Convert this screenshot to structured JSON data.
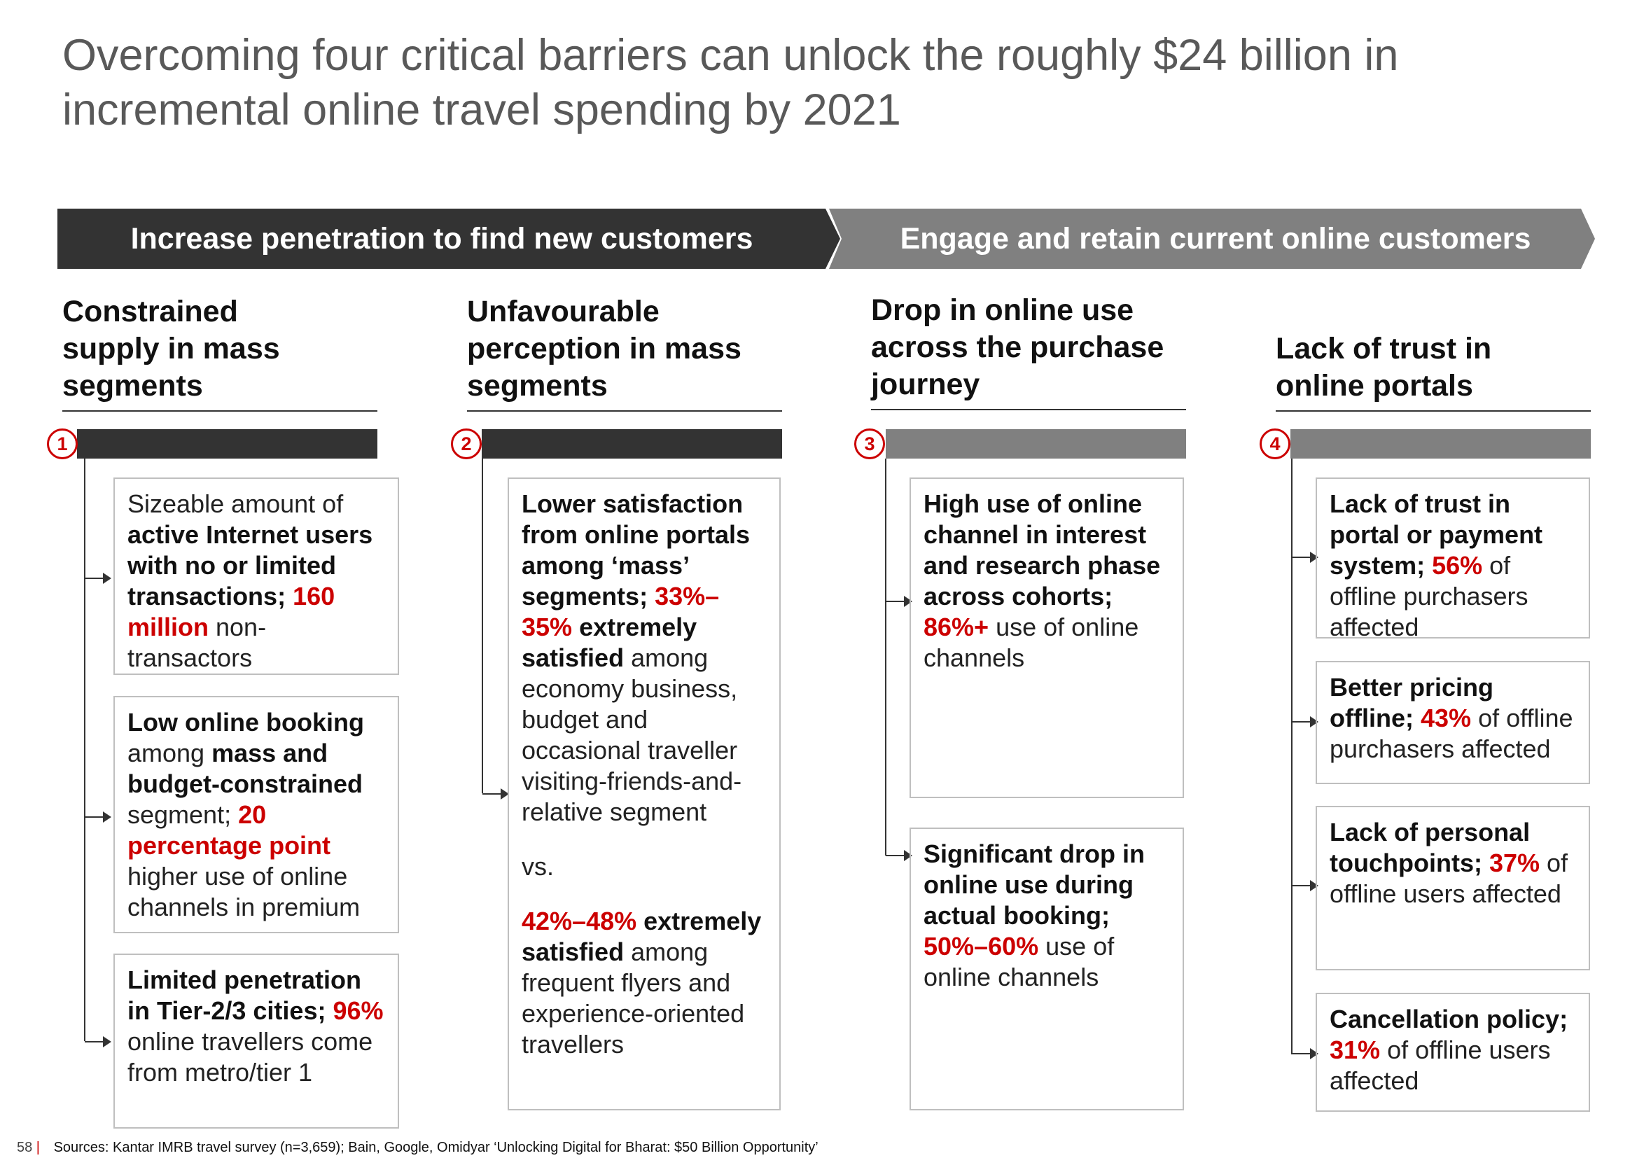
{
  "title": "Overcoming four critical barriers can unlock the roughly $24 billion in\nincremental online travel spending by 2021",
  "banners": {
    "left": "Increase penetration to find new customers",
    "right": "Engage and retain current online customers"
  },
  "columns": [
    {
      "number": "1",
      "heading": "Constrained\nsupply in mass\nsegments",
      "boxes": [
        {
          "parts": [
            {
              "t": "Sizeable amount of "
            },
            {
              "t": "active Internet users with no or limited transactions;",
              "s": "b"
            },
            {
              "t": " "
            },
            {
              "t": "160 million",
              "s": "r"
            },
            {
              "t": " non-transactors"
            }
          ]
        },
        {
          "parts": [
            {
              "t": "Low online booking",
              "s": "b"
            },
            {
              "t": " among "
            },
            {
              "t": "mass and budget-constrained",
              "s": "b"
            },
            {
              "t": " segment; "
            },
            {
              "t": "20 percentage point",
              "s": "r"
            },
            {
              "t": " higher use of online channels in premium"
            }
          ]
        },
        {
          "parts": [
            {
              "t": "Limited penetration in Tier-2/3 cities;",
              "s": "b"
            },
            {
              "t": " "
            },
            {
              "t": "96%",
              "s": "r"
            },
            {
              "t": " online travellers come from metro/tier 1"
            }
          ]
        }
      ]
    },
    {
      "number": "2",
      "heading": "Unfavourable\nperception in mass\nsegments",
      "boxes": [
        {
          "parts": [
            {
              "t": "Lower satisfaction from online portals among ‘mass’ segments;",
              "s": "b"
            },
            {
              "t": " "
            },
            {
              "t": "33%–35%",
              "s": "r"
            },
            {
              "t": " extremely satisfied",
              "s": "b"
            },
            {
              "t": " among economy business, budget and occasional traveller visiting-friends-and-relative segment"
            },
            {
              "t": "vs.",
              "s": "p"
            },
            {
              "t": "42%–48%",
              "s": "r"
            },
            {
              "t": " extremely satisfied",
              "s": "b"
            },
            {
              "t": " among frequent flyers and experience-oriented travellers"
            }
          ]
        }
      ]
    },
    {
      "number": "3",
      "heading": "Drop in online use\nacross the purchase\njourney",
      "boxes": [
        {
          "parts": [
            {
              "t": "High use of online channel in interest and research phase across cohorts;",
              "s": "b"
            },
            {
              "t": " "
            },
            {
              "t": "86%+",
              "s": "r"
            },
            {
              "t": " use of online channels"
            }
          ]
        },
        {
          "parts": [
            {
              "t": "Significant drop in online use during actual booking;",
              "s": "b"
            },
            {
              "t": " "
            },
            {
              "t": "50%–60%",
              "s": "r"
            },
            {
              "t": " use of online channels"
            }
          ]
        }
      ]
    },
    {
      "number": "4",
      "heading": "Lack of trust in\nonline portals",
      "boxes": [
        {
          "parts": [
            {
              "t": "Lack of trust in portal or payment system;",
              "s": "b"
            },
            {
              "t": " "
            },
            {
              "t": "56%",
              "s": "r"
            },
            {
              "t": " of offline purchasers affected"
            }
          ]
        },
        {
          "parts": [
            {
              "t": "Better pricing offline;",
              "s": "b"
            },
            {
              "t": " "
            },
            {
              "t": "43%",
              "s": "r"
            },
            {
              "t": " of offline purchasers affected"
            }
          ]
        },
        {
          "parts": [
            {
              "t": "Lack of personal touchpoints;",
              "s": "b"
            },
            {
              "t": " "
            },
            {
              "t": "37%",
              "s": "r"
            },
            {
              "t": " of offline users affected"
            }
          ]
        },
        {
          "parts": [
            {
              "t": "Cancellation policy;",
              "s": "b"
            },
            {
              "t": " "
            },
            {
              "t": "31%",
              "s": "r"
            },
            {
              "t": " of offline users affected"
            }
          ]
        }
      ]
    }
  ],
  "footer": {
    "page": "58",
    "sources": "Sources: Kantar IMRB travel survey (n=3,659); Bain, Google, Omidyar ‘Unlocking Digital for Bharat: $50 Billion Opportunity’"
  },
  "colors": {
    "accent_red": "#cc0000",
    "dark_bar": "#333333",
    "light_bar": "#808080"
  }
}
